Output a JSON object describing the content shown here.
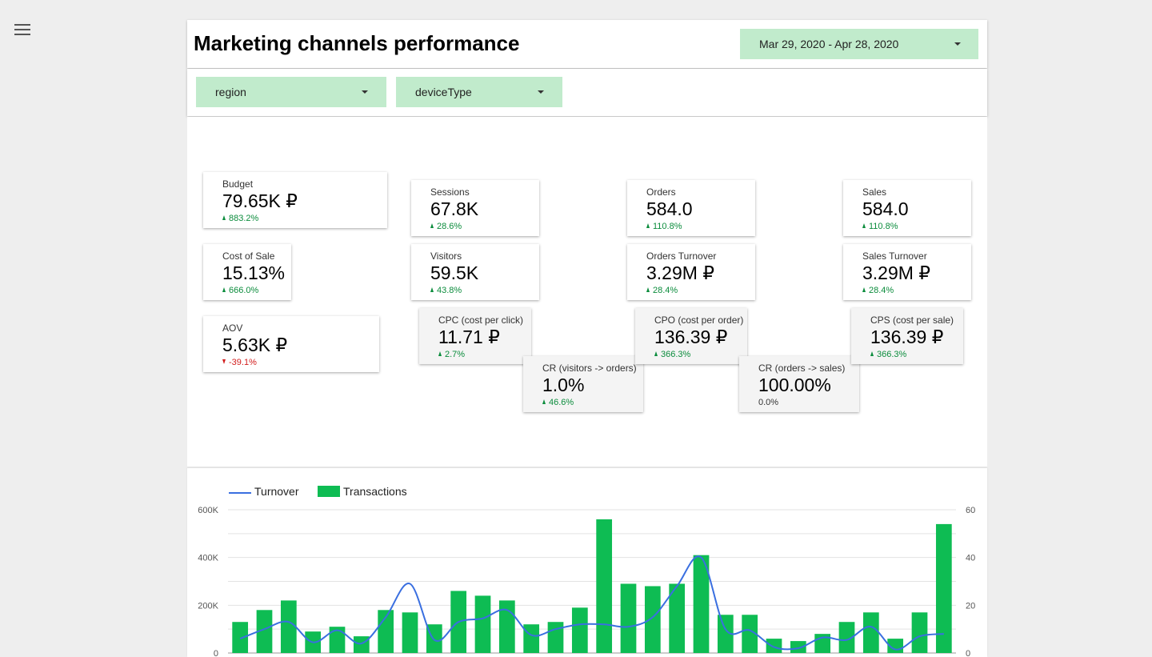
{
  "header": {
    "title": "Marketing channels performance",
    "date_range": "Mar 29, 2020 - Apr 28, 2020"
  },
  "filters": {
    "region": "region",
    "device_type": "deviceType"
  },
  "kpis": {
    "budget": {
      "label": "Budget",
      "value": "79.65K ₽",
      "delta": "883.2%",
      "trend": "up"
    },
    "cost_of_sale": {
      "label": "Cost of Sale",
      "value": "15.13%",
      "delta": "666.0%",
      "trend": "up"
    },
    "aov": {
      "label": "AOV",
      "value": "5.63K ₽",
      "delta": "-39.1%",
      "trend": "down"
    },
    "sessions": {
      "label": "Sessions",
      "value": "67.8K",
      "delta": "28.6%",
      "trend": "up"
    },
    "visitors": {
      "label": "Visitors",
      "value": "59.5K",
      "delta": "43.8%",
      "trend": "up"
    },
    "cpc": {
      "label": "CPC (cost per click)",
      "value": "11.71 ₽",
      "delta": "2.7%",
      "trend": "up"
    },
    "cr_visitors": {
      "label": "CR (visitors -> orders)",
      "value": "1.0%",
      "delta": "46.6%",
      "trend": "up"
    },
    "orders": {
      "label": "Orders",
      "value": "584.0",
      "delta": "110.8%",
      "trend": "up"
    },
    "orders_turnover": {
      "label": "Orders Turnover",
      "value": "3.29M ₽",
      "delta": "28.4%",
      "trend": "up"
    },
    "cpo": {
      "label": "CPO (cost per order)",
      "value": "136.39 ₽",
      "delta": "366.3%",
      "trend": "up"
    },
    "cr_orders": {
      "label": "CR (orders -> sales)",
      "value": "100.00%",
      "delta": "0.0%",
      "trend": "flat"
    },
    "sales": {
      "label": "Sales",
      "value": "584.0",
      "delta": "110.8%",
      "trend": "up"
    },
    "sales_turnover": {
      "label": "Sales Turnover",
      "value": "3.29M ₽",
      "delta": "28.4%",
      "trend": "up"
    },
    "cps": {
      "label": "CPS (cost per sale)",
      "value": "136.39 ₽",
      "delta": "366.3%",
      "trend": "up"
    }
  },
  "chart_data": {
    "type": "bar",
    "legend_position": "top-left",
    "grid": true,
    "series": [
      {
        "name": "Turnover",
        "type": "line",
        "axis": "left",
        "color": "#3a6fe0",
        "values": [
          60000,
          100000,
          130000,
          45000,
          95000,
          40000,
          150000,
          290000,
          55000,
          130000,
          145000,
          180000,
          75000,
          100000,
          120000,
          120000,
          110000,
          150000,
          280000,
          400000,
          100000,
          95000,
          25000,
          20000,
          65000,
          55000,
          110000,
          15000,
          70000,
          80000
        ]
      },
      {
        "name": "Transactions",
        "type": "bar",
        "axis": "right",
        "color": "#0ebc53",
        "values": [
          13,
          18,
          22,
          9,
          11,
          7,
          18,
          17,
          12,
          26,
          24,
          22,
          12,
          13,
          19,
          56,
          29,
          28,
          29,
          41,
          16,
          16,
          6,
          5,
          8,
          13,
          17,
          6,
          17,
          54
        ]
      }
    ],
    "y_left": {
      "ticks": [
        "0",
        "200K",
        "400K",
        "600K"
      ],
      "ylim": [
        0,
        600000
      ]
    },
    "y_right": {
      "ticks": [
        "0",
        "20",
        "40",
        "60"
      ],
      "ylim": [
        0,
        60
      ]
    }
  }
}
